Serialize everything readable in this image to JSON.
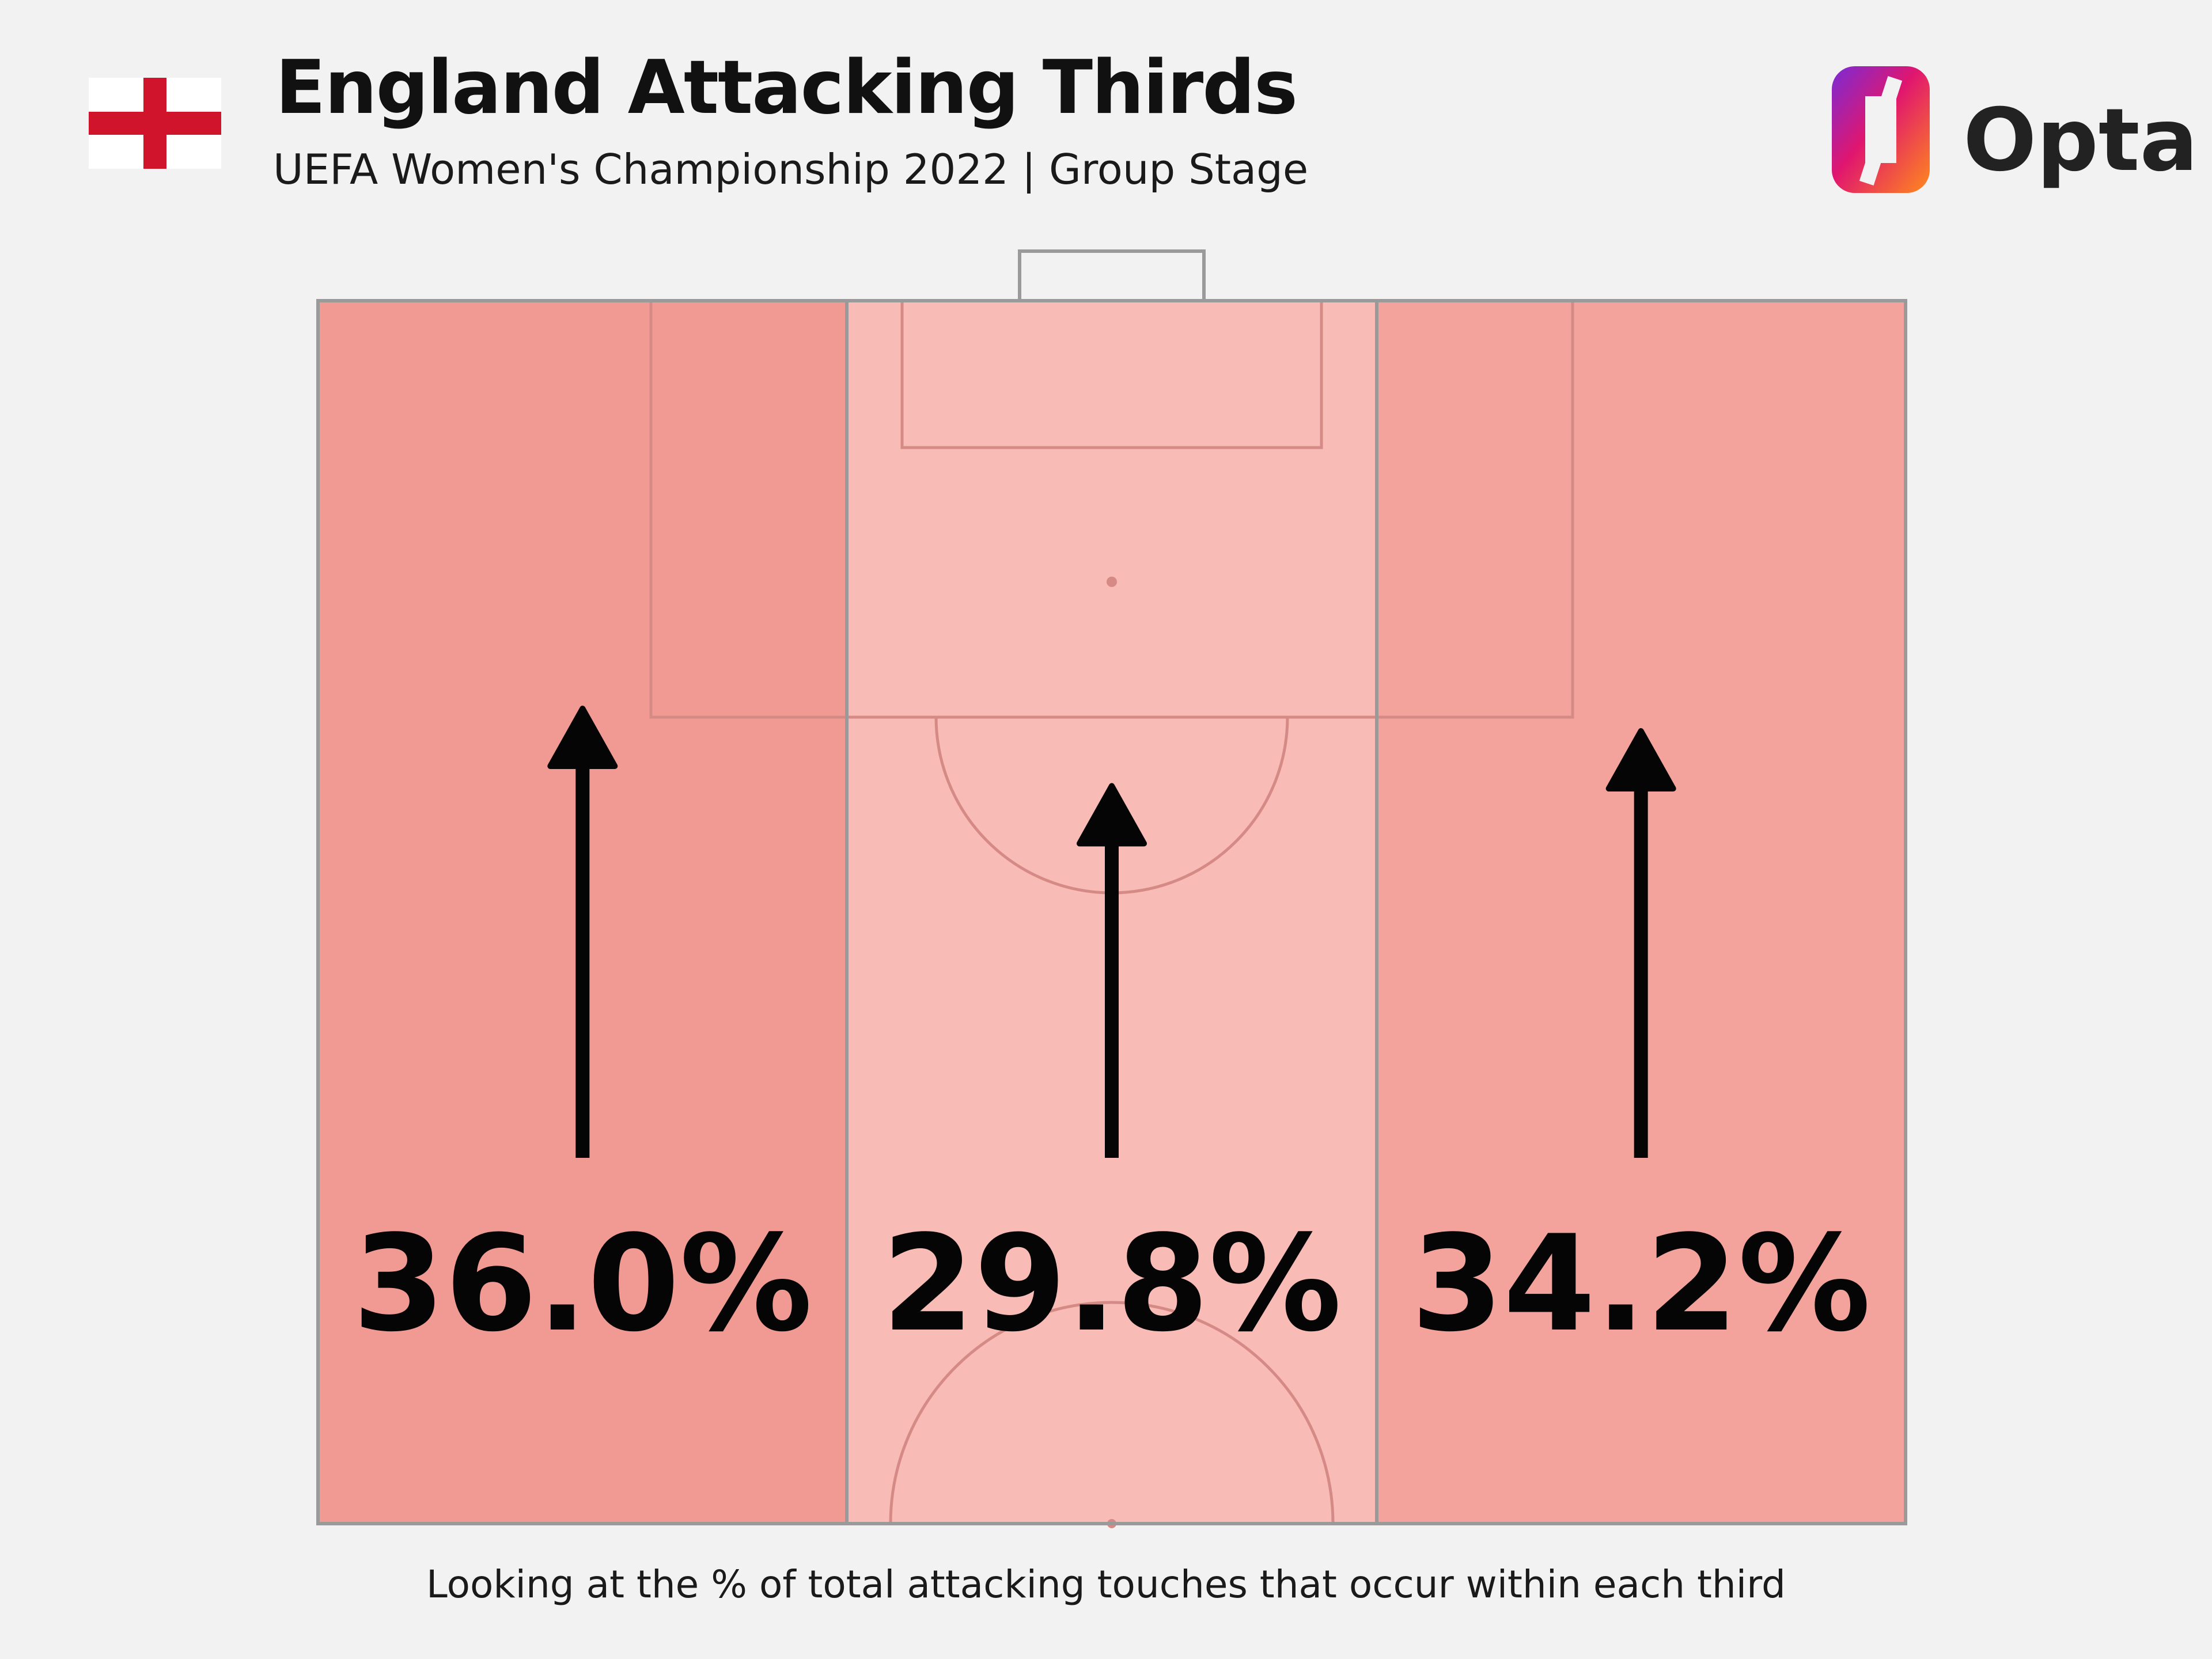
{
  "header": {
    "title": "England Attacking Thirds",
    "subtitle": "UEFA Women's Championship 2022 | Group Stage",
    "flag_icon": "england-flag-icon",
    "brand": "Opta"
  },
  "chart_data": {
    "type": "heatmap",
    "title": "England Attacking Thirds",
    "subtitle": "UEFA Women's Championship 2022 | Group Stage",
    "unit": "%",
    "categories": [
      "Left",
      "Centre",
      "Right"
    ],
    "values": [
      36.0,
      29.8,
      34.2
    ],
    "labels": [
      "36.0%",
      "29.8%",
      "34.2%"
    ],
    "colors": [
      "#f19a93",
      "#f8bbb5",
      "#f3a39b"
    ],
    "annotation": "Looking at the % of total attacking touches that occur within each third"
  },
  "footnote": "Looking at the % of total attacking touches that occur within each third",
  "colors": {
    "background": "#f2f2f2",
    "flag_red": "#d0142c",
    "pitch_line": "#d58a85",
    "border": "#9a9a9a"
  }
}
